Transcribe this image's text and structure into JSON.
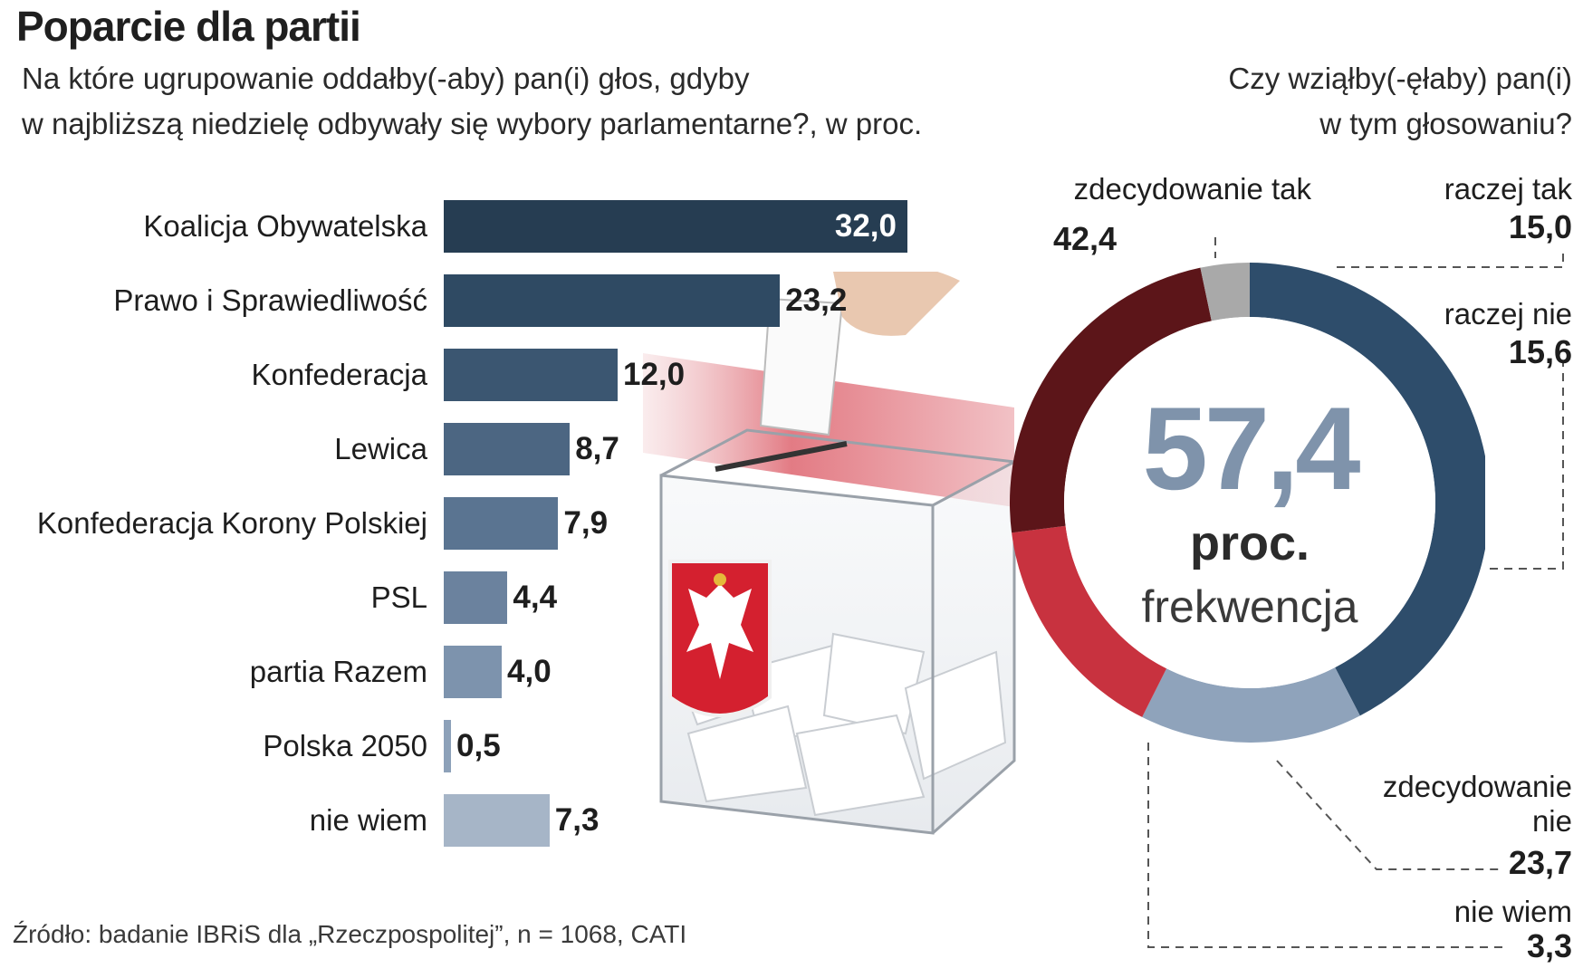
{
  "chart_data": [
    {
      "type": "bar",
      "orientation": "horizontal",
      "title": "Poparcie dla partii",
      "subtitle": [
        "Na które ugrupowanie oddałby(-aby) pan(i) głos, gdyby",
        "w najbliższą niedzielę odbywały się wybory parlamentarne?, w proc."
      ],
      "categories": [
        "Koalicja Obywatelska",
        "Prawo i Sprawiedliwość",
        "Konfederacja",
        "Lewica",
        "Konfederacja Korony Polskiej",
        "PSL",
        "partia Razem",
        "Polska 2050",
        "nie wiem"
      ],
      "values": [
        32.0,
        23.2,
        12.0,
        8.7,
        7.9,
        4.4,
        4.0,
        0.5,
        7.3
      ],
      "value_labels": [
        "32,0",
        "23,2",
        "12,0",
        "8,7",
        "7,9",
        "4,4",
        "4,0",
        "0,5",
        "7,3"
      ],
      "colors": [
        "#263d52",
        "#2f4a63",
        "#3b5671",
        "#4c6682",
        "#5a7491",
        "#6b829e",
        "#7d93ad",
        "#8da1b9",
        "#a6b5c7"
      ]
    },
    {
      "type": "pie",
      "variant": "donut",
      "question": [
        "Czy wziąłby(-ęłaby) pan(i)",
        "w tym głosowaniu?"
      ],
      "categories": [
        "zdecydowanie tak",
        "raczej tak",
        "raczej nie",
        "zdecydowanie nie",
        "nie wiem"
      ],
      "values": [
        42.4,
        15.0,
        15.6,
        23.7,
        3.3
      ],
      "value_labels": [
        "42,4",
        "15,0",
        "15,6",
        "23,7",
        "3,3"
      ],
      "colors": [
        "#2e4d6b",
        "#8fa3bb",
        "#c8323f",
        "#5c1519",
        "#a9a9a9"
      ],
      "center": {
        "value": "57,4",
        "unit": "proc.",
        "text": "frekwencja"
      }
    }
  ],
  "source": "Źródło: badanie IBRiS dla „Rzeczpospolitej”, n = 1068, CATI",
  "decorations": [
    "ballot-box-icon",
    "polish-eagle-emblem-icon",
    "hand-icon"
  ]
}
